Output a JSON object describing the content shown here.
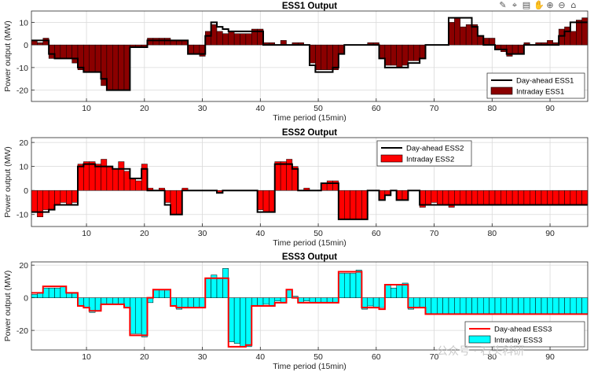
{
  "toolbar": {
    "icons": [
      "brush-icon",
      "data-tips-icon",
      "save-figure-icon",
      "pan-hand-icon",
      "zoom-in-icon",
      "zoom-out-icon",
      "home-icon"
    ]
  },
  "watermark": "公众号 · 石头科研",
  "colors": {
    "axis": "#262626",
    "grid": "#d9d9d9",
    "ess1_fill": "#8b0000",
    "ess2_fill": "#ff0000",
    "ess3_fill": "#00ffff",
    "bar_edge": "#000000"
  },
  "chart_data": [
    {
      "type": "bar",
      "title": "ESS1 Output",
      "xlabel": "Time period (15min)",
      "ylabel": "Power output (MW)",
      "xlim": [
        0.5,
        96.5
      ],
      "ylim": [
        -25,
        15
      ],
      "xticks": [
        10,
        20,
        30,
        40,
        50,
        60,
        70,
        80,
        90
      ],
      "yticks": [
        -20,
        -10,
        0,
        10
      ],
      "grid": true,
      "legend_position": "bottom-right",
      "series": [
        {
          "name": "Day-ahead ESS1",
          "kind": "line",
          "color": "#000000",
          "values": [
            2,
            2,
            2,
            -4,
            -6,
            -6,
            -6,
            -6,
            -10,
            -12,
            -12,
            -12,
            -15,
            -20,
            -20,
            -20,
            -20,
            -1,
            -1,
            -1,
            2,
            2,
            2,
            2,
            2,
            2,
            2,
            -4,
            -4,
            -4,
            4,
            10,
            8,
            7,
            6,
            6,
            6,
            6,
            6,
            6,
            0,
            0,
            0,
            0,
            0,
            0,
            0,
            0,
            -9,
            -12,
            -12,
            -12,
            -10,
            -4,
            0,
            0,
            0,
            0,
            0,
            0,
            -6,
            -10,
            -10,
            -10,
            -10,
            -8,
            -8,
            -6,
            0,
            0,
            0,
            0,
            12,
            12,
            12,
            12,
            8,
            4,
            0,
            0,
            -2,
            -2,
            -4,
            -4,
            -4,
            0,
            0,
            0,
            0,
            0,
            0,
            4,
            6,
            10,
            10,
            10
          ]
        },
        {
          "name": "Intraday ESS1",
          "kind": "bar",
          "color": "#8b0000",
          "values": [
            2,
            1,
            3,
            -6,
            -6,
            -6,
            -6,
            -8,
            -11,
            -12,
            -12,
            -12,
            -18,
            -20,
            -20,
            -20,
            -20,
            -1,
            -1,
            -1,
            3,
            3,
            3,
            3,
            2,
            2,
            2,
            -4,
            -4,
            -5,
            6,
            9,
            6,
            5,
            6,
            5,
            5,
            5,
            7,
            7,
            1,
            1,
            0,
            2,
            0,
            1,
            1,
            0,
            -8,
            -11,
            -11,
            -11,
            -11,
            -4,
            0,
            0,
            0,
            0,
            1,
            1,
            -6,
            -9,
            -9,
            -10,
            -9,
            -7,
            -7,
            -6,
            0,
            0,
            0,
            0,
            10,
            12,
            8,
            9,
            9,
            4,
            3,
            3,
            -2,
            -3,
            -5,
            -4,
            -4,
            1,
            0,
            1,
            1,
            2,
            1,
            7,
            8,
            6,
            11,
            12
          ]
        }
      ],
      "legend": [
        "Day-ahead ESS1",
        "Intraday ESS1"
      ]
    },
    {
      "type": "bar",
      "title": "ESS2 Output",
      "xlabel": "Time period (15min)",
      "ylabel": "Power output (MW)",
      "xlim": [
        0.5,
        96.5
      ],
      "ylim": [
        -15,
        22
      ],
      "xticks": [
        10,
        20,
        30,
        40,
        50,
        60,
        70,
        80,
        90
      ],
      "yticks": [
        -10,
        0,
        10,
        20
      ],
      "grid": true,
      "legend_position": "top-center",
      "series": [
        {
          "name": "Day-ahead ESS2",
          "kind": "line",
          "color": "#000000",
          "values": [
            -9,
            -9,
            -9,
            -8,
            -6,
            -6,
            -6,
            -6,
            10,
            11,
            11,
            10,
            10,
            10,
            9,
            9,
            9,
            5,
            5,
            9,
            0,
            0,
            0,
            -6,
            -10,
            -10,
            0,
            0,
            0,
            0,
            0,
            0,
            -1,
            0,
            0,
            0,
            0,
            0,
            0,
            -9,
            -9,
            -9,
            11,
            11,
            11,
            9,
            0,
            0,
            0,
            0,
            3,
            3,
            3,
            -12,
            -12,
            -12,
            -12,
            -12,
            0,
            0,
            -4,
            -2,
            0,
            -4,
            -4,
            0,
            0,
            -6,
            -6,
            -6,
            -6,
            -6,
            -6,
            -6,
            -6,
            -6,
            -6,
            -6,
            -6,
            -6,
            -6,
            -6,
            -6,
            -6,
            -6,
            -6,
            -6,
            -6,
            -6,
            -6,
            -6,
            -6,
            -6,
            -6,
            -6,
            -6
          ]
        },
        {
          "name": "Intraday ESS2",
          "kind": "bar",
          "color": "#ff0000",
          "values": [
            -9,
            -11,
            -8,
            -8,
            -6,
            -5,
            -6,
            -5,
            11,
            12,
            12,
            11,
            13,
            10,
            9,
            12,
            8,
            5,
            4,
            11,
            1,
            0,
            1,
            -5,
            -10,
            -10,
            1,
            0,
            0,
            0,
            0,
            0,
            -1,
            0,
            0,
            0,
            0,
            0,
            0,
            -8,
            -9,
            -9,
            12,
            12,
            13,
            10,
            0,
            1,
            0,
            0,
            3,
            4,
            4,
            -12,
            -12,
            -12,
            -12,
            -12,
            0,
            0,
            -4,
            -2,
            0,
            -4,
            -4,
            0,
            0,
            -7,
            -6,
            -5,
            -6,
            -6,
            -7,
            -6,
            -6,
            -6,
            -6,
            -6,
            -6,
            -6,
            -6,
            -6,
            -6,
            -6,
            -6,
            -6,
            -6,
            -6,
            -6,
            -6,
            -6,
            -6,
            -6,
            -6,
            -6,
            -6
          ]
        }
      ],
      "legend": [
        "Day-ahead ESS2",
        "Intraday ESS2"
      ]
    },
    {
      "type": "bar",
      "title": "ESS3 Output",
      "xlabel": "Time period (15min)",
      "ylabel": "Power output (MW)",
      "xlim": [
        0.5,
        96.5
      ],
      "ylim": [
        -32,
        22
      ],
      "xticks": [
        10,
        20,
        30,
        40,
        50,
        60,
        70,
        80,
        90
      ],
      "yticks": [
        -20,
        0,
        20
      ],
      "grid": true,
      "legend_position": "bottom-right",
      "series": [
        {
          "name": "Day-ahead ESS3",
          "kind": "line",
          "color": "#ff0000",
          "values": [
            3,
            3,
            7,
            7,
            7,
            7,
            3,
            3,
            -5,
            -6,
            -8,
            -8,
            -4,
            -4,
            -4,
            -4,
            -6,
            -23,
            -23,
            -23,
            0,
            5,
            5,
            5,
            -5,
            -6,
            -6,
            -6,
            -6,
            -6,
            12,
            12,
            12,
            12,
            -30,
            -30,
            -30,
            -29,
            -5,
            -5,
            -5,
            -5,
            -3,
            -3,
            5,
            0,
            -3,
            -3,
            -3,
            -3,
            -3,
            -3,
            -3,
            16,
            16,
            16,
            16,
            -6,
            -6,
            -6,
            -7,
            8,
            8,
            8,
            8,
            -6,
            -6,
            -6,
            -10,
            -10,
            -10,
            -10,
            -10,
            -10,
            -10,
            -10,
            -10,
            -10,
            -10,
            -10,
            -10,
            -10,
            -10,
            -10,
            -10,
            -10,
            -10,
            -10,
            -10,
            -10,
            -10,
            -10,
            -10,
            -10,
            -10,
            -10
          ]
        },
        {
          "name": "Intraday ESS3",
          "kind": "bar",
          "color": "#00ffff",
          "values": [
            2,
            3,
            6,
            6,
            6,
            7,
            3,
            3,
            -5,
            -6,
            -9,
            -8,
            -4,
            -4,
            -4,
            -4,
            -6,
            -22,
            -22,
            -24,
            -3,
            5,
            5,
            5,
            -5,
            -7,
            -6,
            -6,
            -6,
            -6,
            12,
            14,
            12,
            18,
            -27,
            -28,
            -30,
            -30,
            -5,
            -5,
            -4,
            -5,
            -2,
            -3,
            5,
            1,
            -3,
            -2,
            -3,
            -3,
            -3,
            -3,
            -3,
            15,
            15,
            15,
            17,
            -7,
            -5,
            -6,
            -6,
            8,
            6,
            8,
            9,
            -7,
            -6,
            -6,
            -10,
            -10,
            -10,
            -10,
            -10,
            -10,
            -10,
            -10,
            -10,
            -10,
            -10,
            -10,
            -10,
            -10,
            -10,
            -10,
            -10,
            -10,
            -10,
            -10,
            -10,
            -10,
            -10,
            -10,
            -10,
            -10,
            -10,
            -10
          ]
        }
      ],
      "legend": [
        "Day-ahead ESS3",
        "Intraday ESS3"
      ]
    }
  ]
}
